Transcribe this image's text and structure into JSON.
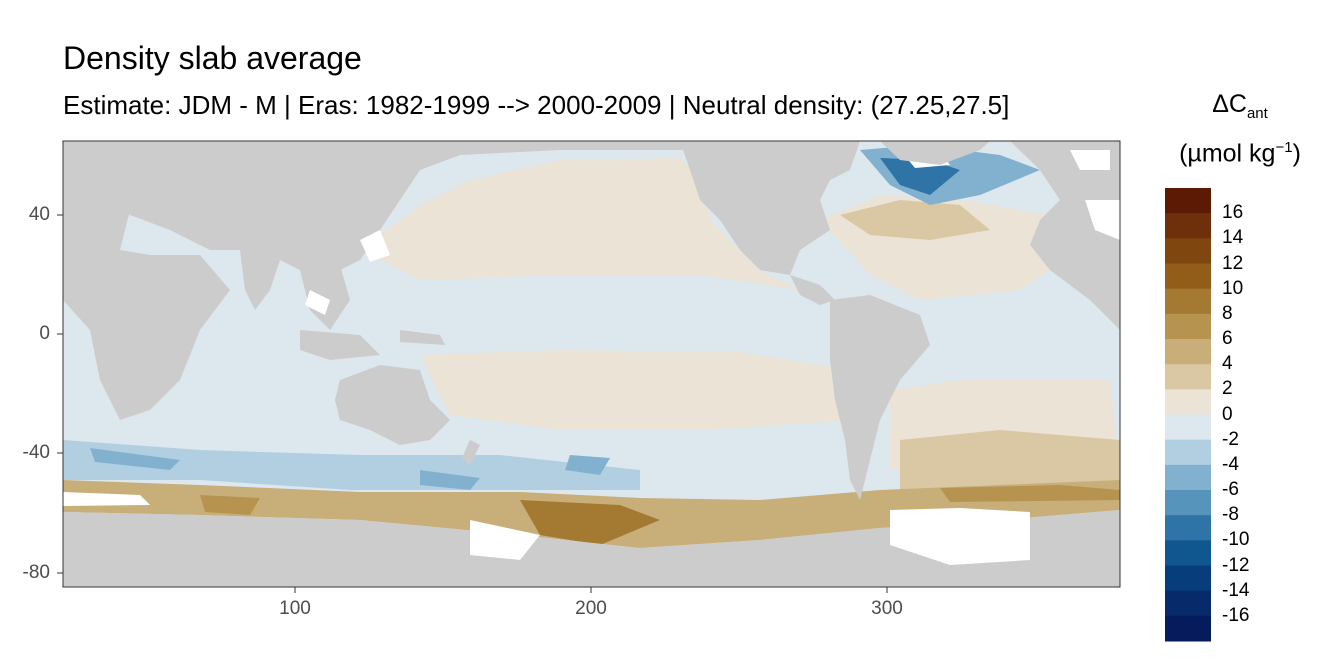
{
  "title": "Density slab average",
  "subtitle": "Estimate: JDM - M | Eras: 1982-1999 --> 2000-2009 | Neutral density: (27.25,27.5]",
  "legend": {
    "title_main": "ΔC",
    "title_sub": "ant",
    "unit_prefix": "(µmol kg",
    "unit_sup": "−1",
    "unit_suffix": ")",
    "labels": [
      "16",
      "14",
      "12",
      "10",
      "8",
      "6",
      "4",
      "2",
      "0",
      "-2",
      "-4",
      "-6",
      "-8",
      "-10",
      "-12",
      "-14",
      "-16"
    ],
    "colors": [
      "#5c1a04",
      "#6e300a",
      "#804610",
      "#925d18",
      "#a47a32",
      "#b6944f",
      "#c8ae79",
      "#dac7a3",
      "#ebe3d6",
      "#dce7ee",
      "#b2cfe2",
      "#82b1cf",
      "#5694bb",
      "#2e74a6",
      "#105790",
      "#073d7a",
      "#062a6a",
      "#051b5c"
    ]
  },
  "axes": {
    "y_ticks": [
      "40",
      "0",
      "-40",
      "-80"
    ],
    "x_ticks": [
      "100",
      "200",
      "300"
    ]
  },
  "map": {
    "land_color": "#cccccc",
    "ocean_colors": {
      "zero_neg": "#dce7ee",
      "zero_pos": "#ebe3d6",
      "pos_4": "#dac7a3",
      "pos_6": "#c8ae79",
      "pos_8": "#b6944f",
      "pos_10": "#a47a32",
      "neg_2": "#b2cfe2",
      "neg_4": "#82b1cf",
      "neg_8": "#2e74a6",
      "nodata": "#ffffff"
    }
  }
}
